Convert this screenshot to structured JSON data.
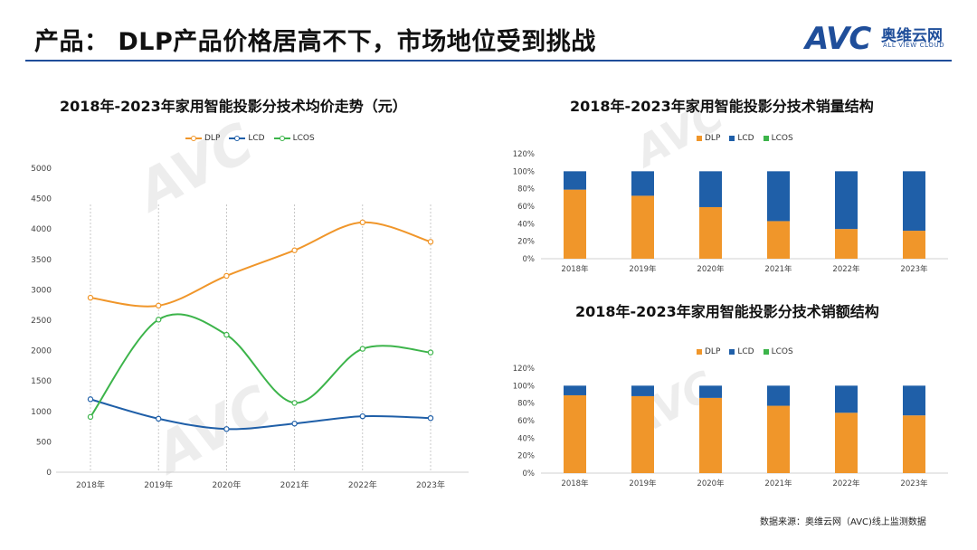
{
  "header": {
    "title": "产品： DLP产品价格居高不下，市场地位受到挑战",
    "logo_avc": "AVC",
    "logo_cn": "奥维云网",
    "logo_en": "ALL VIEW CLOUD"
  },
  "colors": {
    "DLP": "#f0962a",
    "LCD": "#1f5fa8",
    "LCOS": "#3cb44a",
    "rule": "#1f4e9a"
  },
  "source": "数据来源：奥维云网（AVC)线上监测数据",
  "chart_data": [
    {
      "type": "line",
      "title": "2018年-2023年家用智能投影分技术均价走势（元）",
      "categories": [
        "2018年",
        "2019年",
        "2020年",
        "2021年",
        "2022年",
        "2023年"
      ],
      "series": [
        {
          "name": "DLP",
          "values": [
            2870,
            2740,
            3230,
            3650,
            4110,
            3790
          ]
        },
        {
          "name": "LCD",
          "values": [
            1200,
            880,
            710,
            800,
            920,
            890
          ]
        },
        {
          "name": "LCOS",
          "values": [
            910,
            2510,
            2260,
            1140,
            2030,
            1970
          ]
        }
      ],
      "ylim": [
        0,
        5000
      ],
      "yticks": [
        "0",
        "500",
        "1000",
        "1500",
        "2000",
        "2500",
        "3000",
        "3500",
        "4000",
        "4500",
        "5000"
      ],
      "legend": "top"
    },
    {
      "type": "bar",
      "stacked": true,
      "title": "2018年-2023年家用智能投影分技术销量结构",
      "categories": [
        "2018年",
        "2019年",
        "2020年",
        "2021年",
        "2022年",
        "2023年"
      ],
      "series": [
        {
          "name": "DLP",
          "values": [
            79,
            72,
            59,
            43,
            34,
            32
          ]
        },
        {
          "name": "LCD",
          "values": [
            21,
            28,
            41,
            57,
            66,
            68
          ]
        },
        {
          "name": "LCOS",
          "values": [
            0,
            0,
            0,
            0,
            0,
            0
          ]
        }
      ],
      "ylim": [
        0,
        120
      ],
      "yticks": [
        "0%",
        "20%",
        "40%",
        "60%",
        "80%",
        "100%",
        "120%"
      ],
      "legend": "top"
    },
    {
      "type": "bar",
      "stacked": true,
      "title": "2018年-2023年家用智能投影分技术销额结构",
      "categories": [
        "2018年",
        "2019年",
        "2020年",
        "2021年",
        "2022年",
        "2023年"
      ],
      "series": [
        {
          "name": "DLP",
          "values": [
            89,
            88,
            86,
            77,
            69,
            66
          ]
        },
        {
          "name": "LCD",
          "values": [
            11,
            12,
            14,
            23,
            31,
            34
          ]
        },
        {
          "name": "LCOS",
          "values": [
            0,
            0,
            0,
            0,
            0,
            0
          ]
        }
      ],
      "ylim": [
        0,
        120
      ],
      "yticks": [
        "0%",
        "20%",
        "40%",
        "60%",
        "80%",
        "100%",
        "120%"
      ],
      "legend": "top"
    }
  ]
}
